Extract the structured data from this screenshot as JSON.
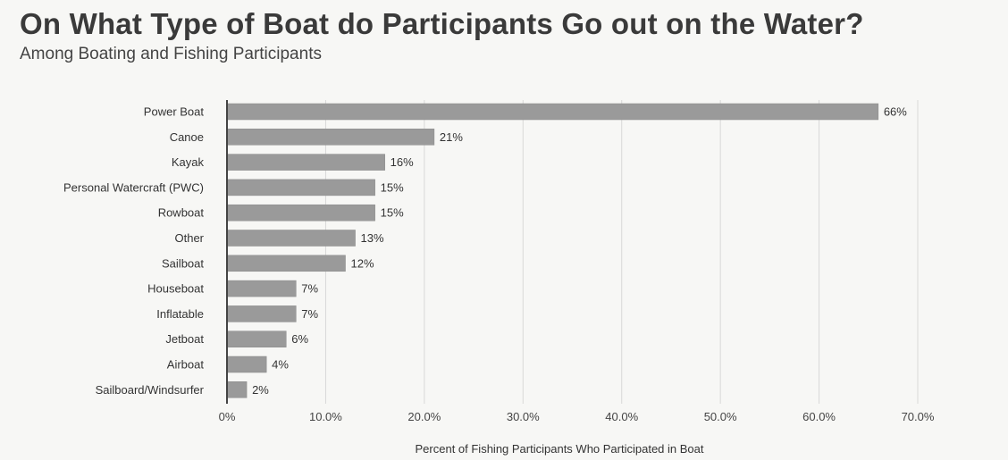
{
  "chart_data": {
    "type": "bar",
    "orientation": "horizontal",
    "title": "On What Type of Boat do Participants Go out on the Water?",
    "subtitle": "Among Boating and Fishing Participants",
    "xlabel": "Percent of Fishing Participants Who Participated in Boat",
    "ylabel": "",
    "xlim": [
      0,
      70
    ],
    "grid": true,
    "categories": [
      "Power Boat",
      "Canoe",
      "Kayak",
      "Personal Watercraft (PWC)",
      "Rowboat",
      "Other",
      "Sailboat",
      "Houseboat",
      "Inflatable",
      "Jetboat",
      "Airboat",
      "Sailboard/Windsurfer"
    ],
    "values": [
      66,
      21,
      16,
      15,
      15,
      13,
      12,
      7,
      7,
      6,
      4,
      2
    ],
    "value_labels": [
      "66%",
      "21%",
      "16%",
      "15%",
      "15%",
      "13%",
      "12%",
      "7%",
      "7%",
      "6%",
      "4%",
      "2%"
    ],
    "x_ticks": [
      0,
      10,
      20,
      30,
      40,
      50,
      60,
      70
    ],
    "x_tick_labels": [
      "0%",
      "10.0%",
      "20.0%",
      "30.0%",
      "40.0%",
      "50.0%",
      "60.0%",
      "70.0%"
    ],
    "colors": {
      "bar": "#9a9a9a",
      "bar_edge": "#8a8a8a",
      "grid": "#d8d8d8",
      "axis": "#444444"
    }
  }
}
